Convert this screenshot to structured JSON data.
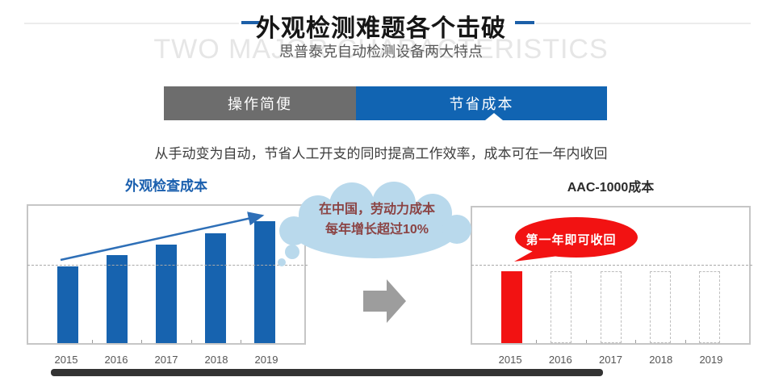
{
  "header": {
    "title": "外观检测难题各个击破",
    "subtitle": "思普泰克自动检测设备两大特点",
    "watermark": "TWO MAJOR CHARACTERISTICS"
  },
  "tabs": [
    {
      "label": "操作简便",
      "active": false
    },
    {
      "label": "节省成本",
      "active": true
    }
  ],
  "description": "从手动变为自动，节省人工开支的同时提高工作效率，成本可在一年内收回",
  "annotations": {
    "cloud_line1": "在中国，劳动力成本",
    "cloud_line2": "每年增长超过10%",
    "bubble_text": "第一年即可收回"
  },
  "colors": {
    "accent_blue": "#1164b2",
    "tab_gray": "#6d6d6d",
    "bar_blue": "#1763af",
    "alert_red": "#f21212",
    "cloud_blue": "#b9d9ec",
    "cloud_text": "#8b4343",
    "watermark_gray": "#e6e6e6"
  },
  "chart_data": [
    {
      "type": "bar",
      "title": "外观检查成本",
      "categories": [
        "2015",
        "2016",
        "2017",
        "2018",
        "2019"
      ],
      "values": [
        56,
        64,
        72,
        80,
        89
      ],
      "value_unit": "percent-of-plot-height",
      "bar_style": [
        "solid",
        "solid",
        "solid",
        "solid",
        "solid"
      ],
      "bar_color": "#1763af",
      "reference_line": 56.5,
      "grid": "single-dashed-horizontal-line",
      "annotation": "rising-trend-arrow",
      "xlabel": "",
      "ylabel": ""
    },
    {
      "type": "bar",
      "title": "AAC-1000成本",
      "categories": [
        "2015",
        "2016",
        "2017",
        "2018",
        "2019"
      ],
      "values": [
        53,
        53,
        53,
        53,
        53
      ],
      "value_unit": "percent-of-plot-height",
      "bar_style": [
        "solid",
        "dashed-outline",
        "dashed-outline",
        "dashed-outline",
        "dashed-outline"
      ],
      "bar_color": "#f21212",
      "reference_line": 57,
      "grid": "single-dashed-horizontal-line",
      "annotation": "第一年即可收回",
      "xlabel": "",
      "ylabel": ""
    }
  ]
}
